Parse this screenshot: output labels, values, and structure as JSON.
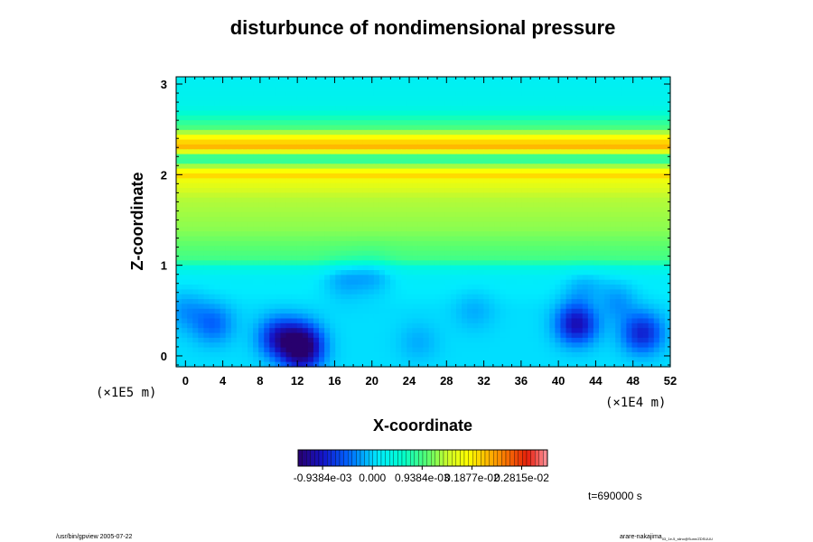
{
  "chart_data": {
    "type": "heatmap",
    "title": "disturbunce of nondimensional pressure",
    "xlabel": "X-coordinate",
    "ylabel": "Z-coordinate",
    "x_unit": "(×1E4 m)",
    "y_unit": "(×1E5 m)",
    "xlim": [
      -1,
      52
    ],
    "ylim": [
      -0.12,
      3.08
    ],
    "x_ticks": [
      0,
      4,
      8,
      12,
      16,
      20,
      24,
      28,
      32,
      36,
      40,
      44,
      48,
      52
    ],
    "y_ticks": [
      0,
      1,
      2,
      3
    ],
    "colorbar": {
      "min": -0.0014,
      "max": 0.0033,
      "tick_values": [
        -0.0009384,
        0.0,
        0.0009384,
        0.001877,
        0.002815
      ],
      "tick_labels": [
        "-0.9384e-03",
        "0.000",
        "0.9384e-03",
        "0.1877e-02",
        "0.2815e-02"
      ]
    },
    "vertical_profile": [
      {
        "z": -0.1,
        "v": 5e-05
      },
      {
        "z": 0.5,
        "v": 5e-05
      },
      {
        "z": 0.85,
        "v": 0.00015
      },
      {
        "z": 0.98,
        "v": 0.0004
      },
      {
        "z": 1.05,
        "v": 0.0009
      },
      {
        "z": 1.4,
        "v": 0.0012
      },
      {
        "z": 1.75,
        "v": 0.00135
      },
      {
        "z": 1.95,
        "v": 0.0017
      },
      {
        "z": 2.0,
        "v": 0.0021
      },
      {
        "z": 2.06,
        "v": 0.0016
      },
      {
        "z": 2.14,
        "v": 0.00085
      },
      {
        "z": 2.2,
        "v": 0.0009
      },
      {
        "z": 2.3,
        "v": 0.0022
      },
      {
        "z": 2.4,
        "v": 0.0019
      },
      {
        "z": 2.5,
        "v": 0.001
      },
      {
        "z": 2.6,
        "v": 0.00075
      },
      {
        "z": 2.75,
        "v": 0.0003
      },
      {
        "z": 3.08,
        "v": 0.0002
      }
    ],
    "anomalies": [
      {
        "x": 10,
        "z": 0.2,
        "v": -0.0009
      },
      {
        "x": 12.5,
        "z": 0.15,
        "v": -0.0011
      },
      {
        "x": 12.5,
        "z": 0.0,
        "v": -0.0007
      },
      {
        "x": 3,
        "z": 0.35,
        "v": -0.0005
      },
      {
        "x": 0,
        "z": 0.5,
        "v": -0.0003
      },
      {
        "x": 17,
        "z": 0.85,
        "v": -0.0003
      },
      {
        "x": 20,
        "z": 0.9,
        "v": -0.0003
      },
      {
        "x": 42,
        "z": 0.35,
        "v": -0.0011
      },
      {
        "x": 49,
        "z": 0.25,
        "v": -0.0009
      },
      {
        "x": 46,
        "z": 0.6,
        "v": -0.0004
      },
      {
        "x": 43,
        "z": 0.7,
        "v": -0.0004
      },
      {
        "x": 31,
        "z": 0.5,
        "v": -0.0002
      },
      {
        "x": 25,
        "z": 0.15,
        "v": -0.0002
      },
      {
        "x": 44,
        "z": 0.6,
        "v": 0.0003
      }
    ]
  },
  "time_label": "t=690000 s",
  "footer": {
    "left": "/usr/bin/gpview 2005-07-22",
    "right_main": "arare-nakajima",
    "right_sub": "03_1e-5_slino@Sunn/ZDSUUU"
  }
}
